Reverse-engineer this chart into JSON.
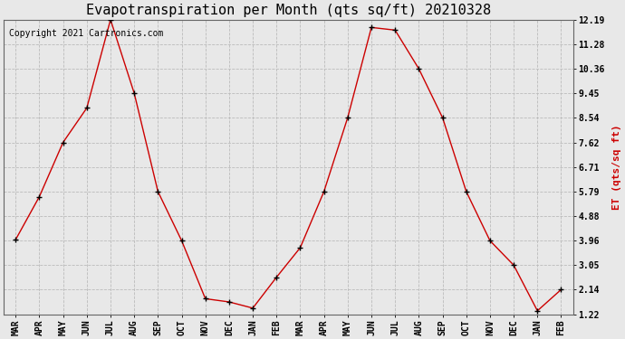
{
  "title": "Evapotranspiration per Month (qts sq/ft) 20210328",
  "ylabel": "ET (qts/sq ft)",
  "copyright": "Copyright 2021 Cartronics.com",
  "x_labels": [
    "MAR",
    "APR",
    "MAY",
    "JUN",
    "JUL",
    "AUG",
    "SEP",
    "OCT",
    "NOV",
    "DEC",
    "JAN",
    "FEB",
    "MAR",
    "APR",
    "MAY",
    "JUN",
    "JUL",
    "AUG",
    "SEP",
    "OCT",
    "NOV",
    "DEC",
    "JAN",
    "FEB"
  ],
  "y_values": [
    4.0,
    5.6,
    7.62,
    8.9,
    12.19,
    9.45,
    5.79,
    3.96,
    1.8,
    1.68,
    1.45,
    2.6,
    3.7,
    5.79,
    8.54,
    11.9,
    11.8,
    10.36,
    8.54,
    5.79,
    3.96,
    3.05,
    1.35,
    2.14
  ],
  "yticks": [
    1.22,
    2.14,
    3.05,
    3.96,
    4.88,
    5.79,
    6.71,
    7.62,
    8.54,
    9.45,
    10.36,
    11.28,
    12.19
  ],
  "ylim": [
    1.22,
    12.19
  ],
  "line_color": "#cc0000",
  "marker_color": "#000000",
  "title_fontsize": 11,
  "label_fontsize": 8,
  "tick_fontsize": 7,
  "copyright_fontsize": 7,
  "background_color": "#e8e8e8",
  "grid_color": "#bbbbbb",
  "ylabel_color": "#cc0000",
  "copyright_color": "#000000"
}
